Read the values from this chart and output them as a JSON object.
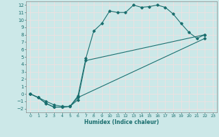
{
  "xlabel": "Humidex (Indice chaleur)",
  "xlim": [
    -0.5,
    23.5
  ],
  "ylim": [
    -2.5,
    12.5
  ],
  "xticks": [
    0,
    1,
    2,
    3,
    4,
    5,
    6,
    7,
    8,
    9,
    10,
    11,
    12,
    13,
    14,
    15,
    16,
    17,
    18,
    19,
    20,
    21,
    22,
    23
  ],
  "yticks": [
    -2,
    -1,
    0,
    1,
    2,
    3,
    4,
    5,
    6,
    7,
    8,
    9,
    10,
    11,
    12
  ],
  "bg_color": "#cce8e8",
  "grid_color": "#f0e0e0",
  "line_color": "#1a6e6e",
  "line1": [
    [
      0,
      0
    ],
    [
      1,
      -0.5
    ],
    [
      2,
      -1.0
    ],
    [
      3,
      -1.5
    ],
    [
      4,
      -1.7
    ],
    [
      5,
      -1.7
    ],
    [
      6,
      -0.3
    ],
    [
      7,
      4.8
    ],
    [
      8,
      8.5
    ],
    [
      9,
      9.5
    ],
    [
      10,
      11.2
    ],
    [
      11,
      11.0
    ],
    [
      12,
      11.0
    ],
    [
      13,
      12.0
    ],
    [
      14,
      11.7
    ],
    [
      15,
      11.8
    ],
    [
      16,
      12.0
    ],
    [
      17,
      11.7
    ],
    [
      18,
      10.8
    ],
    [
      19,
      9.5
    ],
    [
      20,
      8.3
    ],
    [
      21,
      7.5
    ],
    [
      22,
      8.0
    ]
  ],
  "line2": [
    [
      0,
      0
    ],
    [
      1,
      -0.5
    ],
    [
      2,
      -1.3
    ],
    [
      3,
      -1.8
    ],
    [
      4,
      -1.8
    ],
    [
      5,
      -1.7
    ],
    [
      6,
      -0.8
    ],
    [
      7,
      4.5
    ],
    [
      22,
      8.0
    ]
  ],
  "line3": [
    [
      0,
      0
    ],
    [
      1,
      -0.5
    ],
    [
      2,
      -1.3
    ],
    [
      3,
      -1.8
    ],
    [
      4,
      -1.8
    ],
    [
      5,
      -1.7
    ],
    [
      6,
      -0.5
    ],
    [
      22,
      7.5
    ]
  ],
  "marker": "D",
  "markersize": 1.8,
  "linewidth": 0.8
}
